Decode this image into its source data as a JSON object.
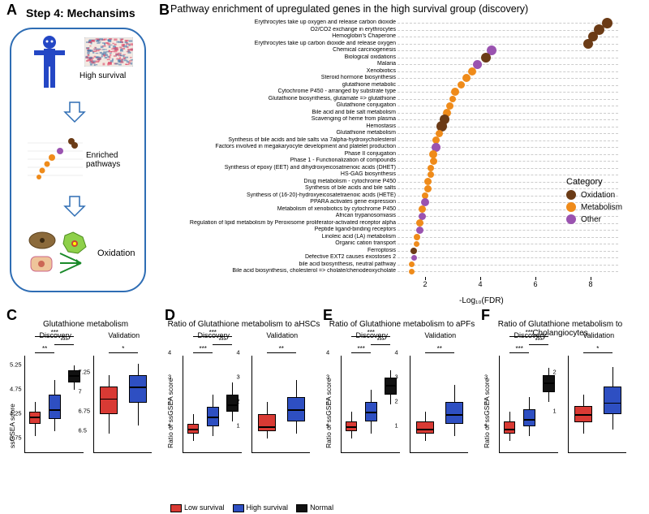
{
  "colors": {
    "oxidation": "#6b3b16",
    "metabolism": "#ef8b1a",
    "other": "#9a53b0",
    "low_survival": "#d93a34",
    "high_survival": "#2e4fc2",
    "normal": "#111111",
    "border_blue": "#2e6db4",
    "bg": "#ffffff"
  },
  "panelA": {
    "label": "A",
    "title": "Step 4: Mechansims",
    "high_survival": "High survival",
    "enriched": "Enriched\npathways",
    "oxidation": "Oxidation"
  },
  "panelB": {
    "label": "B",
    "title": "Pathway enrichment of upregulated genes in the high survival group (discovery)",
    "xlabel": "-Log₁₀(FDR)",
    "xlim": [
      1,
      9
    ],
    "xticks": [
      2,
      4,
      6,
      8
    ],
    "legend_title": "Category",
    "legend_items": [
      {
        "label": "Oxidation",
        "color": "#6b3b16"
      },
      {
        "label": "Metabolism",
        "color": "#ef8b1a"
      },
      {
        "label": "Other",
        "color": "#9a53b0"
      }
    ],
    "size_range": [
      6,
      14
    ],
    "rows": [
      {
        "label": "Erythrocytes take up oxygen and release carbon dioxide",
        "x": 8.6,
        "cat": "oxidation",
        "size": 13
      },
      {
        "label": "O2/CO2 exchange in erythrocytes",
        "x": 8.3,
        "cat": "oxidation",
        "size": 13
      },
      {
        "label": "Hemoglobin's Chaperone",
        "x": 8.1,
        "cat": "oxidation",
        "size": 12
      },
      {
        "label": "Erythrocytes take up carbon dioxide and release oxygen",
        "x": 7.9,
        "cat": "oxidation",
        "size": 12
      },
      {
        "label": "Chemical carcinogenesis",
        "x": 4.4,
        "cat": "other",
        "size": 12
      },
      {
        "label": "Biological oxidations",
        "x": 4.2,
        "cat": "oxidation",
        "size": 12
      },
      {
        "label": "Malaria",
        "x": 3.9,
        "cat": "other",
        "size": 11
      },
      {
        "label": "Xenobiotics",
        "x": 3.7,
        "cat": "metabolism",
        "size": 10
      },
      {
        "label": "Steroid hormone biosynthesis",
        "x": 3.5,
        "cat": "metabolism",
        "size": 10
      },
      {
        "label": "glutathione metabolic",
        "x": 3.3,
        "cat": "metabolism",
        "size": 9
      },
      {
        "label": "Cytochrome P450 - arranged by substrate type",
        "x": 3.1,
        "cat": "metabolism",
        "size": 10
      },
      {
        "label": "Glutathione biosynthesis, glutamate => glutathione",
        "x": 3.0,
        "cat": "metabolism",
        "size": 8
      },
      {
        "label": "Glutathione conjugation",
        "x": 2.9,
        "cat": "metabolism",
        "size": 9
      },
      {
        "label": "Bile acid and bile salt metabolism",
        "x": 2.8,
        "cat": "metabolism",
        "size": 10
      },
      {
        "label": "Scavenging of heme from plasma",
        "x": 2.7,
        "cat": "oxidation",
        "size": 12
      },
      {
        "label": "Hemostasis",
        "x": 2.6,
        "cat": "oxidation",
        "size": 13
      },
      {
        "label": "Glutathione metabolism",
        "x": 2.5,
        "cat": "metabolism",
        "size": 9
      },
      {
        "label": "Synthesis of bile acids and bile salts via 7alpha-hydroxycholesterol",
        "x": 2.4,
        "cat": "metabolism",
        "size": 9
      },
      {
        "label": "Factors involved in megakaryocyte development and platelet production",
        "x": 2.4,
        "cat": "other",
        "size": 11
      },
      {
        "label": "Phase II conjugation",
        "x": 2.3,
        "cat": "metabolism",
        "size": 10
      },
      {
        "label": "Phase 1 - Functionalization of compounds",
        "x": 2.3,
        "cat": "metabolism",
        "size": 9
      },
      {
        "label": "Synthesis of epoxy (EET) and dihydroxyeicosatrienoic acids (DHET)",
        "x": 2.2,
        "cat": "metabolism",
        "size": 8
      },
      {
        "label": "HS-GAG biosynthesis",
        "x": 2.2,
        "cat": "metabolism",
        "size": 8
      },
      {
        "label": "Drug metabolism - cytochrome P450",
        "x": 2.1,
        "cat": "metabolism",
        "size": 9
      },
      {
        "label": "Synthesis of bile acids and bile salts",
        "x": 2.1,
        "cat": "metabolism",
        "size": 9
      },
      {
        "label": "Synthesis of (16-20)-hydroxyeicosatetraenoic acids (HETE)",
        "x": 2.0,
        "cat": "metabolism",
        "size": 8
      },
      {
        "label": "PPARA activates gene expression",
        "x": 2.0,
        "cat": "other",
        "size": 10
      },
      {
        "label": "Metabolism of xenobiotics by cytochrome P450",
        "x": 1.9,
        "cat": "metabolism",
        "size": 9
      },
      {
        "label": "African trypanosomiasis",
        "x": 1.9,
        "cat": "other",
        "size": 9
      },
      {
        "label": "Regulation of lipid metabolism by Peroxisome proliferator-activated receptor alpha",
        "x": 1.8,
        "cat": "metabolism",
        "size": 9
      },
      {
        "label": "Peptide ligand-binding receptors",
        "x": 1.8,
        "cat": "other",
        "size": 9
      },
      {
        "label": "Linoleic acid (LA) metabolism",
        "x": 1.7,
        "cat": "metabolism",
        "size": 8
      },
      {
        "label": "Organic cation transport",
        "x": 1.7,
        "cat": "metabolism",
        "size": 7
      },
      {
        "label": "Ferroptosis",
        "x": 1.6,
        "cat": "oxidation",
        "size": 8
      },
      {
        "label": "Defective EXT2 causes exostoses 2",
        "x": 1.6,
        "cat": "other",
        "size": 7
      },
      {
        "label": "bile acid biosynthesis, neutral pathway",
        "x": 1.5,
        "cat": "metabolism",
        "size": 7
      },
      {
        "label": "Bile acid biosynthesis, cholesterol => cholate/chenodeoxycholate",
        "x": 1.5,
        "cat": "metabolism",
        "size": 7
      }
    ]
  },
  "boxplots": {
    "ylabel_main": "ssGSEA score",
    "ylabel_ratio": "Ratio of ssGSEA score",
    "groups": [
      "Low survival",
      "High survival",
      "Normal"
    ],
    "panels": [
      {
        "id": "C",
        "label": "C",
        "title": "Glutathione metabolism",
        "subs": [
          {
            "name": "Discovery",
            "ylim": [
              3.5,
              5.5
            ],
            "yticks": [
              3.75,
              4.25,
              4.75,
              5.25
            ],
            "n": 3,
            "boxes": [
              {
                "g": 0,
                "q1": 4.1,
                "med": 4.25,
                "q3": 4.35,
                "lo": 3.85,
                "hi": 4.55
              },
              {
                "g": 1,
                "q1": 4.2,
                "med": 4.4,
                "q3": 4.7,
                "lo": 3.95,
                "hi": 5.0
              },
              {
                "g": 2,
                "q1": 4.95,
                "med": 5.1,
                "q3": 5.2,
                "lo": 4.8,
                "hi": 5.3
              }
            ],
            "sig": [
              [
                "**",
                0,
                1
              ],
              [
                "***",
                1,
                2
              ],
              [
                "***",
                0,
                2
              ]
            ]
          },
          {
            "name": "Validation",
            "ylim": [
              6.25,
              7.5
            ],
            "yticks": [
              6.5,
              6.75,
              7.0,
              7.25
            ],
            "n": 2,
            "boxes": [
              {
                "g": 0,
                "q1": 6.75,
                "med": 6.95,
                "q3": 7.1,
                "lo": 6.5,
                "hi": 7.25
              },
              {
                "g": 1,
                "q1": 6.9,
                "med": 7.1,
                "q3": 7.25,
                "lo": 6.6,
                "hi": 7.4
              }
            ],
            "sig": [
              [
                "*",
                0,
                1
              ]
            ]
          }
        ]
      },
      {
        "id": "D",
        "label": "D",
        "title": "Ratio of Glutathione metabolism to aHSCs",
        "subs": [
          {
            "name": "Discovery",
            "ylim": [
              0,
              4
            ],
            "yticks": [
              1,
              2,
              3,
              4
            ],
            "n": 3,
            "boxes": [
              {
                "g": 0,
                "q1": 0.8,
                "med": 1.0,
                "q3": 1.2,
                "lo": 0.5,
                "hi": 1.6
              },
              {
                "g": 1,
                "q1": 1.1,
                "med": 1.5,
                "q3": 1.9,
                "lo": 0.7,
                "hi": 2.4
              },
              {
                "g": 2,
                "q1": 1.7,
                "med": 2.0,
                "q3": 2.4,
                "lo": 1.3,
                "hi": 2.9
              }
            ],
            "sig": [
              [
                "***",
                0,
                1
              ],
              [
                "***",
                1,
                2
              ],
              [
                "***",
                0,
                2
              ]
            ]
          },
          {
            "name": "Validation",
            "ylim": [
              0,
              4
            ],
            "yticks": [
              1,
              2,
              3,
              4
            ],
            "n": 2,
            "boxes": [
              {
                "g": 0,
                "q1": 0.9,
                "med": 1.1,
                "q3": 1.6,
                "lo": 0.6,
                "hi": 2.1
              },
              {
                "g": 1,
                "q1": 1.3,
                "med": 1.8,
                "q3": 2.3,
                "lo": 0.8,
                "hi": 3.0
              }
            ],
            "sig": [
              [
                "**",
                0,
                1
              ]
            ]
          }
        ]
      },
      {
        "id": "E",
        "label": "E",
        "title": "Ratio of Glutathione metabolism to aPFs",
        "subs": [
          {
            "name": "Discovery",
            "ylim": [
              0,
              4
            ],
            "yticks": [
              1,
              2,
              3,
              4
            ],
            "n": 3,
            "boxes": [
              {
                "g": 0,
                "q1": 0.9,
                "med": 1.1,
                "q3": 1.3,
                "lo": 0.6,
                "hi": 1.7
              },
              {
                "g": 1,
                "q1": 1.3,
                "med": 1.7,
                "q3": 2.1,
                "lo": 0.8,
                "hi": 2.6
              },
              {
                "g": 2,
                "q1": 2.4,
                "med": 2.8,
                "q3": 3.1,
                "lo": 2.0,
                "hi": 3.4
              }
            ],
            "sig": [
              [
                "***",
                0,
                1
              ],
              [
                "***",
                1,
                2
              ],
              [
                "***",
                0,
                2
              ]
            ]
          },
          {
            "name": "Validation",
            "ylim": [
              0,
              4
            ],
            "yticks": [
              1,
              2,
              3,
              4
            ],
            "n": 2,
            "boxes": [
              {
                "g": 0,
                "q1": 0.8,
                "med": 1.0,
                "q3": 1.3,
                "lo": 0.5,
                "hi": 1.7
              },
              {
                "g": 1,
                "q1": 1.2,
                "med": 1.6,
                "q3": 2.1,
                "lo": 0.7,
                "hi": 2.8
              }
            ],
            "sig": [
              [
                "**",
                0,
                1
              ]
            ]
          }
        ]
      },
      {
        "id": "F",
        "label": "F",
        "title": "Ratio of Glutathione metabolism to Cholangiocytes",
        "subs": [
          {
            "name": "Discovery",
            "ylim": [
              0,
              4
            ],
            "yticks": [
              1,
              2,
              3
            ],
            "n": 3,
            "boxes": [
              {
                "g": 0,
                "q1": 0.8,
                "med": 1.0,
                "q3": 1.3,
                "lo": 0.5,
                "hi": 1.7
              },
              {
                "g": 1,
                "q1": 1.1,
                "med": 1.4,
                "q3": 1.8,
                "lo": 0.7,
                "hi": 2.3
              },
              {
                "g": 2,
                "q1": 2.5,
                "med": 2.9,
                "q3": 3.2,
                "lo": 2.1,
                "hi": 3.5
              }
            ],
            "sig": [
              [
                "***",
                0,
                1
              ],
              [
                "***",
                1,
                2
              ],
              [
                "***",
                0,
                2
              ]
            ]
          },
          {
            "name": "Validation",
            "ylim": [
              0,
              2.5
            ],
            "yticks": [
              1,
              2
            ],
            "n": 2,
            "boxes": [
              {
                "g": 0,
                "q1": 0.8,
                "med": 1.0,
                "q3": 1.2,
                "lo": 0.5,
                "hi": 1.5
              },
              {
                "g": 1,
                "q1": 1.0,
                "med": 1.3,
                "q3": 1.7,
                "lo": 0.6,
                "hi": 2.2
              }
            ],
            "sig": [
              [
                "*",
                0,
                1
              ]
            ]
          }
        ]
      }
    ]
  },
  "bottom_legend": [
    {
      "label": "Low survival",
      "color": "#d93a34"
    },
    {
      "label": "High survival",
      "color": "#2e4fc2"
    },
    {
      "label": "Normal",
      "color": "#111111"
    }
  ]
}
